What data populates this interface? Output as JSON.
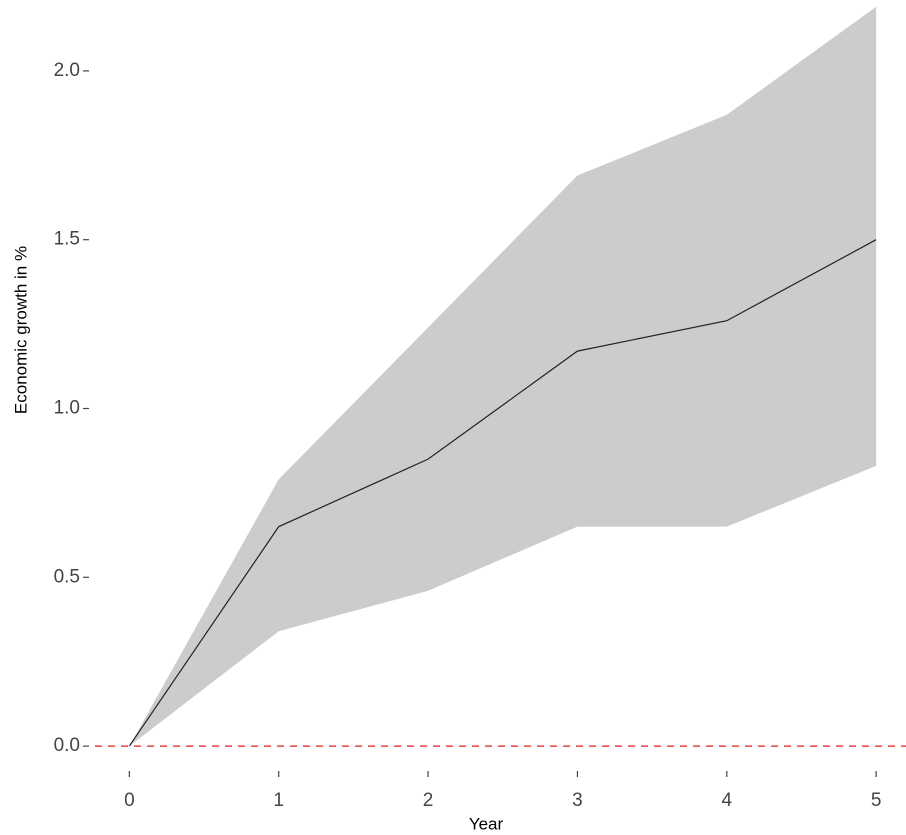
{
  "chart_data": {
    "type": "line",
    "x_label": "Year",
    "y_label": "Economic growth in %",
    "x": [
      0,
      1,
      2,
      3,
      4,
      5
    ],
    "values": [
      0,
      0.65,
      0.85,
      1.17,
      1.26,
      1.5
    ],
    "lower": [
      0,
      0.34,
      0.46,
      0.65,
      0.65,
      0.83
    ],
    "upper": [
      0,
      0.79,
      1.24,
      1.69,
      1.87,
      2.19
    ],
    "line_color": "#222222",
    "band_color": "#cccccc",
    "hline": 0,
    "hline_color": "#e8403f",
    "xlim": [
      -0.23,
      5.2
    ],
    "ylim": [
      -0.056,
      2.21
    ],
    "xticks": [
      0,
      1,
      2,
      3,
      4,
      5
    ],
    "yticks": [
      {
        "value": 0,
        "label": "0.0"
      },
      0.5,
      {
        "value": 1,
        "label": "1.0"
      },
      1.5,
      {
        "value": 2,
        "label": "2.0"
      }
    ],
    "grid": false
  }
}
